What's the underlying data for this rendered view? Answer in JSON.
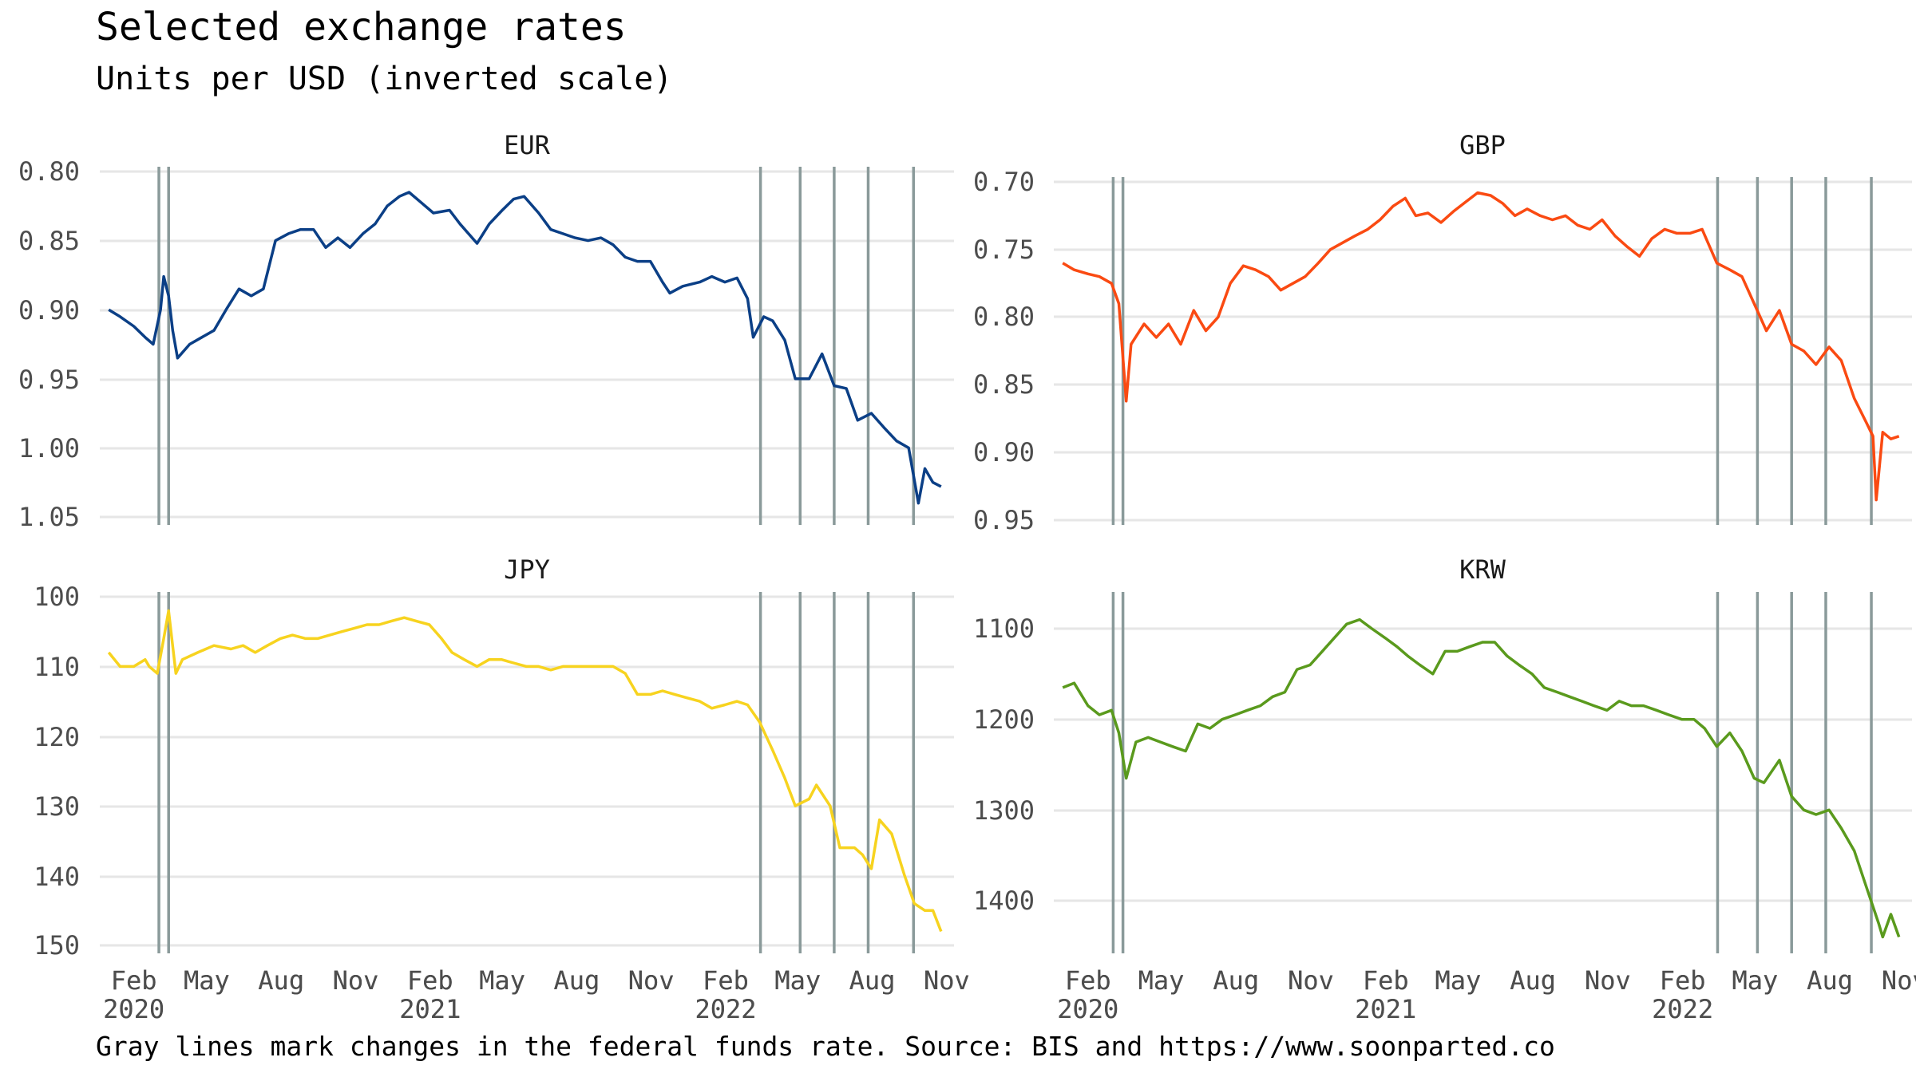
{
  "title": "Selected exchange rates",
  "subtitle": "Units per USD (inverted scale)",
  "caption": "Gray lines mark changes in the federal funds rate. Source: BIS and https://www.soonparted.co",
  "colors": {
    "EUR": "#0b3f86",
    "GBP": "#fa4a12",
    "JPY": "#f7d31f",
    "KRW": "#5a9a1d",
    "event_line": "#8a9a9a",
    "grid": "#e6e6e6"
  },
  "chart_data": [
    {
      "type": "line",
      "panel": "EUR",
      "y_inverted": true,
      "ylim": [
        0.8,
        1.05
      ],
      "y_ticks": [
        "0.80",
        "0.85",
        "0.90",
        "0.95",
        "1.00",
        "1.05"
      ],
      "x_ticks": [
        {
          "month": "Feb",
          "year": "2020"
        },
        {
          "month": "May",
          "year": ""
        },
        {
          "month": "Aug",
          "year": ""
        },
        {
          "month": "Nov",
          "year": ""
        },
        {
          "month": "Feb",
          "year": "2021"
        },
        {
          "month": "May",
          "year": ""
        },
        {
          "month": "Aug",
          "year": ""
        },
        {
          "month": "Nov",
          "year": ""
        },
        {
          "month": "Feb",
          "year": "2022"
        },
        {
          "month": "May",
          "year": ""
        },
        {
          "month": "Aug",
          "year": ""
        },
        {
          "month": "Nov",
          "year": ""
        }
      ],
      "events": [
        "2020-03-03",
        "2020-03-15",
        "2022-03-16",
        "2022-05-04",
        "2022-06-15",
        "2022-07-27",
        "2022-09-21"
      ],
      "series": [
        {
          "x": [
            "2020-01-01",
            "2020-01-15",
            "2020-02-01",
            "2020-02-15",
            "2020-02-25",
            "2020-03-05",
            "2020-03-09",
            "2020-03-15",
            "2020-03-20",
            "2020-03-26",
            "2020-04-10",
            "2020-04-25",
            "2020-05-10",
            "2020-05-25",
            "2020-06-10",
            "2020-06-25",
            "2020-07-10",
            "2020-07-25",
            "2020-08-10",
            "2020-08-25",
            "2020-09-10",
            "2020-09-25",
            "2020-10-10",
            "2020-10-25",
            "2020-11-10",
            "2020-11-25",
            "2020-12-10",
            "2020-12-25",
            "2021-01-06",
            "2021-01-20",
            "2021-02-05",
            "2021-02-25",
            "2021-03-10",
            "2021-03-31",
            "2021-04-15",
            "2021-05-01",
            "2021-05-15",
            "2021-05-28",
            "2021-06-15",
            "2021-06-30",
            "2021-07-15",
            "2021-07-30",
            "2021-08-15",
            "2021-08-31",
            "2021-09-15",
            "2021-09-30",
            "2021-10-15",
            "2021-10-31",
            "2021-11-15",
            "2021-11-24",
            "2021-12-10",
            "2021-12-31",
            "2022-01-15",
            "2022-01-31",
            "2022-02-15",
            "2022-02-28",
            "2022-03-07",
            "2022-03-20",
            "2022-03-31",
            "2022-04-15",
            "2022-04-28",
            "2022-05-15",
            "2022-05-31",
            "2022-06-15",
            "2022-06-30",
            "2022-07-14",
            "2022-07-31",
            "2022-08-15",
            "2022-08-31",
            "2022-09-15",
            "2022-09-27",
            "2022-10-05",
            "2022-10-15",
            "2022-10-25"
          ],
          "y": [
            0.9,
            0.905,
            0.912,
            0.92,
            0.925,
            0.9,
            0.876,
            0.89,
            0.915,
            0.935,
            0.925,
            0.92,
            0.915,
            0.9,
            0.885,
            0.89,
            0.885,
            0.85,
            0.845,
            0.842,
            0.842,
            0.855,
            0.848,
            0.855,
            0.845,
            0.838,
            0.825,
            0.818,
            0.815,
            0.822,
            0.83,
            0.828,
            0.838,
            0.852,
            0.838,
            0.828,
            0.82,
            0.818,
            0.83,
            0.842,
            0.845,
            0.848,
            0.85,
            0.848,
            0.853,
            0.862,
            0.865,
            0.865,
            0.88,
            0.888,
            0.883,
            0.88,
            0.876,
            0.88,
            0.877,
            0.892,
            0.92,
            0.905,
            0.908,
            0.922,
            0.95,
            0.95,
            0.932,
            0.955,
            0.957,
            0.98,
            0.975,
            0.985,
            0.995,
            1.0,
            1.04,
            1.015,
            1.025,
            1.028
          ]
        }
      ]
    },
    {
      "type": "line",
      "panel": "GBP",
      "y_inverted": true,
      "ylim": [
        0.7,
        0.95
      ],
      "y_ticks": [
        "0.70",
        "0.75",
        "0.80",
        "0.85",
        "0.90",
        "0.95"
      ],
      "x_ticks": [
        {
          "month": "Feb",
          "year": "2020"
        },
        {
          "month": "May",
          "year": ""
        },
        {
          "month": "Aug",
          "year": ""
        },
        {
          "month": "Nov",
          "year": ""
        },
        {
          "month": "Feb",
          "year": "2021"
        },
        {
          "month": "May",
          "year": ""
        },
        {
          "month": "Aug",
          "year": ""
        },
        {
          "month": "Nov",
          "year": ""
        },
        {
          "month": "Feb",
          "year": "2022"
        },
        {
          "month": "May",
          "year": ""
        },
        {
          "month": "Aug",
          "year": ""
        },
        {
          "month": "Nov",
          "year": ""
        }
      ],
      "events": [
        "2020-03-03",
        "2020-03-15",
        "2022-03-16",
        "2022-05-04",
        "2022-06-15",
        "2022-07-27",
        "2022-09-21"
      ],
      "series": [
        {
          "x": [
            "2020-01-01",
            "2020-01-15",
            "2020-02-01",
            "2020-02-15",
            "2020-03-01",
            "2020-03-10",
            "2020-03-19",
            "2020-03-25",
            "2020-04-10",
            "2020-04-25",
            "2020-05-10",
            "2020-05-25",
            "2020-06-10",
            "2020-06-25",
            "2020-07-10",
            "2020-07-25",
            "2020-08-10",
            "2020-08-25",
            "2020-09-10",
            "2020-09-25",
            "2020-10-10",
            "2020-10-25",
            "2020-11-10",
            "2020-11-25",
            "2020-12-10",
            "2020-12-25",
            "2021-01-10",
            "2021-01-25",
            "2021-02-10",
            "2021-02-25",
            "2021-03-10",
            "2021-03-25",
            "2021-04-10",
            "2021-04-25",
            "2021-05-10",
            "2021-05-25",
            "2021-06-10",
            "2021-06-25",
            "2021-07-10",
            "2021-07-25",
            "2021-08-10",
            "2021-08-25",
            "2021-09-10",
            "2021-09-25",
            "2021-10-10",
            "2021-10-25",
            "2021-11-10",
            "2021-11-25",
            "2021-12-10",
            "2021-12-25",
            "2022-01-10",
            "2022-01-25",
            "2022-02-10",
            "2022-02-25",
            "2022-03-15",
            "2022-03-31",
            "2022-04-15",
            "2022-04-30",
            "2022-05-15",
            "2022-05-31",
            "2022-06-15",
            "2022-06-30",
            "2022-07-15",
            "2022-07-31",
            "2022-08-15",
            "2022-08-31",
            "2022-09-15",
            "2022-09-23",
            "2022-09-27",
            "2022-10-05",
            "2022-10-15",
            "2022-10-25"
          ],
          "y": [
            0.76,
            0.765,
            0.768,
            0.77,
            0.775,
            0.79,
            0.862,
            0.82,
            0.805,
            0.815,
            0.805,
            0.82,
            0.795,
            0.81,
            0.8,
            0.775,
            0.762,
            0.765,
            0.77,
            0.78,
            0.775,
            0.77,
            0.76,
            0.75,
            0.745,
            0.74,
            0.735,
            0.728,
            0.718,
            0.712,
            0.725,
            0.723,
            0.73,
            0.722,
            0.715,
            0.708,
            0.71,
            0.716,
            0.725,
            0.72,
            0.725,
            0.728,
            0.725,
            0.732,
            0.735,
            0.728,
            0.74,
            0.748,
            0.755,
            0.742,
            0.735,
            0.738,
            0.738,
            0.735,
            0.76,
            0.765,
            0.77,
            0.79,
            0.81,
            0.795,
            0.82,
            0.825,
            0.835,
            0.822,
            0.832,
            0.86,
            0.878,
            0.888,
            0.935,
            0.885,
            0.89,
            0.888
          ]
        }
      ]
    },
    {
      "type": "line",
      "panel": "JPY",
      "y_inverted": true,
      "ylim": [
        100,
        150
      ],
      "y_ticks": [
        "100",
        "110",
        "120",
        "130",
        "140",
        "150"
      ],
      "x_ticks": [
        {
          "month": "Feb",
          "year": "2020"
        },
        {
          "month": "May",
          "year": ""
        },
        {
          "month": "Aug",
          "year": ""
        },
        {
          "month": "Nov",
          "year": ""
        },
        {
          "month": "Feb",
          "year": "2021"
        },
        {
          "month": "May",
          "year": ""
        },
        {
          "month": "Aug",
          "year": ""
        },
        {
          "month": "Nov",
          "year": ""
        },
        {
          "month": "Feb",
          "year": "2022"
        },
        {
          "month": "May",
          "year": ""
        },
        {
          "month": "Aug",
          "year": ""
        },
        {
          "month": "Nov",
          "year": ""
        }
      ],
      "events": [
        "2020-03-03",
        "2020-03-15",
        "2022-03-16",
        "2022-05-04",
        "2022-06-15",
        "2022-07-27",
        "2022-09-21"
      ],
      "series": [
        {
          "x": [
            "2020-01-01",
            "2020-01-15",
            "2020-02-01",
            "2020-02-15",
            "2020-02-20",
            "2020-03-01",
            "2020-03-09",
            "2020-03-15",
            "2020-03-24",
            "2020-04-01",
            "2020-04-20",
            "2020-05-10",
            "2020-05-31",
            "2020-06-15",
            "2020-06-30",
            "2020-07-15",
            "2020-07-31",
            "2020-08-15",
            "2020-08-31",
            "2020-09-15",
            "2020-09-30",
            "2020-10-15",
            "2020-10-31",
            "2020-11-15",
            "2020-11-30",
            "2020-12-15",
            "2020-12-31",
            "2021-01-15",
            "2021-01-31",
            "2021-02-15",
            "2021-02-28",
            "2021-03-15",
            "2021-03-31",
            "2021-04-15",
            "2021-04-30",
            "2021-05-15",
            "2021-05-31",
            "2021-06-15",
            "2021-06-30",
            "2021-07-15",
            "2021-07-31",
            "2021-08-15",
            "2021-08-31",
            "2021-09-15",
            "2021-09-30",
            "2021-10-15",
            "2021-10-31",
            "2021-11-15",
            "2021-11-30",
            "2021-12-15",
            "2021-12-31",
            "2022-01-15",
            "2022-01-31",
            "2022-02-15",
            "2022-02-28",
            "2022-03-15",
            "2022-03-31",
            "2022-04-15",
            "2022-04-28",
            "2022-05-15",
            "2022-05-24",
            "2022-06-10",
            "2022-06-22",
            "2022-07-10",
            "2022-07-20",
            "2022-07-31",
            "2022-08-10",
            "2022-08-25",
            "2022-09-10",
            "2022-09-22",
            "2022-10-05",
            "2022-10-15",
            "2022-10-25"
          ],
          "y": [
            108,
            110,
            110,
            109,
            110,
            111,
            106,
            102,
            111,
            109,
            108,
            107,
            107.5,
            107,
            108,
            107,
            106,
            105.5,
            106,
            106,
            105.5,
            105,
            104.5,
            104,
            104,
            103.5,
            103,
            103.5,
            104,
            106,
            108,
            109,
            110,
            109,
            109,
            109.5,
            110,
            110,
            110.5,
            110,
            110,
            110,
            110,
            110,
            111,
            114,
            114,
            113.5,
            114,
            114.5,
            115,
            116,
            115.5,
            115,
            115.5,
            118,
            122,
            126,
            130,
            129,
            127,
            130,
            136,
            136,
            137,
            139,
            132,
            134,
            140,
            144,
            145,
            145,
            148
          ]
        }
      ]
    },
    {
      "type": "line",
      "panel": "KRW",
      "y_inverted": true,
      "ylim": [
        1070,
        1455
      ],
      "y_ticks": [
        "1100",
        "1200",
        "1300",
        "1400"
      ],
      "x_ticks": [
        {
          "month": "Feb",
          "year": "2020"
        },
        {
          "month": "May",
          "year": ""
        },
        {
          "month": "Aug",
          "year": ""
        },
        {
          "month": "Nov",
          "year": ""
        },
        {
          "month": "Feb",
          "year": "2021"
        },
        {
          "month": "May",
          "year": ""
        },
        {
          "month": "Aug",
          "year": ""
        },
        {
          "month": "Nov",
          "year": ""
        },
        {
          "month": "Feb",
          "year": "2022"
        },
        {
          "month": "May",
          "year": ""
        },
        {
          "month": "Aug",
          "year": ""
        },
        {
          "month": "Nov",
          "year": ""
        }
      ],
      "events": [
        "2020-03-03",
        "2020-03-15",
        "2022-03-16",
        "2022-05-04",
        "2022-06-15",
        "2022-07-27",
        "2022-09-21"
      ],
      "series": [
        {
          "x": [
            "2020-01-01",
            "2020-01-15",
            "2020-02-01",
            "2020-02-15",
            "2020-03-01",
            "2020-03-10",
            "2020-03-19",
            "2020-03-31",
            "2020-04-15",
            "2020-04-30",
            "2020-05-15",
            "2020-05-31",
            "2020-06-15",
            "2020-06-30",
            "2020-07-15",
            "2020-07-31",
            "2020-08-15",
            "2020-08-31",
            "2020-09-15",
            "2020-09-30",
            "2020-10-15",
            "2020-10-31",
            "2020-11-15",
            "2020-11-30",
            "2020-12-15",
            "2020-12-31",
            "2021-01-15",
            "2021-01-31",
            "2021-02-15",
            "2021-02-28",
            "2021-03-15",
            "2021-03-31",
            "2021-04-15",
            "2021-04-30",
            "2021-05-15",
            "2021-05-31",
            "2021-06-15",
            "2021-06-30",
            "2021-07-15",
            "2021-07-31",
            "2021-08-15",
            "2021-08-31",
            "2021-09-15",
            "2021-09-30",
            "2021-10-15",
            "2021-10-31",
            "2021-11-15",
            "2021-11-30",
            "2021-12-15",
            "2021-12-31",
            "2022-01-15",
            "2022-01-31",
            "2022-02-15",
            "2022-02-28",
            "2022-03-15",
            "2022-03-31",
            "2022-04-15",
            "2022-04-30",
            "2022-05-12",
            "2022-05-31",
            "2022-06-15",
            "2022-06-30",
            "2022-07-15",
            "2022-07-31",
            "2022-08-15",
            "2022-08-31",
            "2022-09-15",
            "2022-09-30",
            "2022-10-05",
            "2022-10-15",
            "2022-10-25"
          ],
          "y": [
            1165,
            1160,
            1185,
            1195,
            1190,
            1215,
            1265,
            1225,
            1220,
            1225,
            1230,
            1235,
            1205,
            1210,
            1200,
            1195,
            1190,
            1185,
            1175,
            1170,
            1145,
            1140,
            1125,
            1110,
            1095,
            1090,
            1100,
            1110,
            1120,
            1130,
            1140,
            1150,
            1125,
            1125,
            1120,
            1115,
            1115,
            1130,
            1140,
            1150,
            1165,
            1170,
            1175,
            1180,
            1185,
            1190,
            1180,
            1185,
            1185,
            1190,
            1195,
            1200,
            1200,
            1210,
            1230,
            1215,
            1235,
            1265,
            1270,
            1245,
            1285,
            1300,
            1305,
            1300,
            1320,
            1345,
            1385,
            1425,
            1440,
            1415,
            1440
          ]
        }
      ]
    }
  ]
}
